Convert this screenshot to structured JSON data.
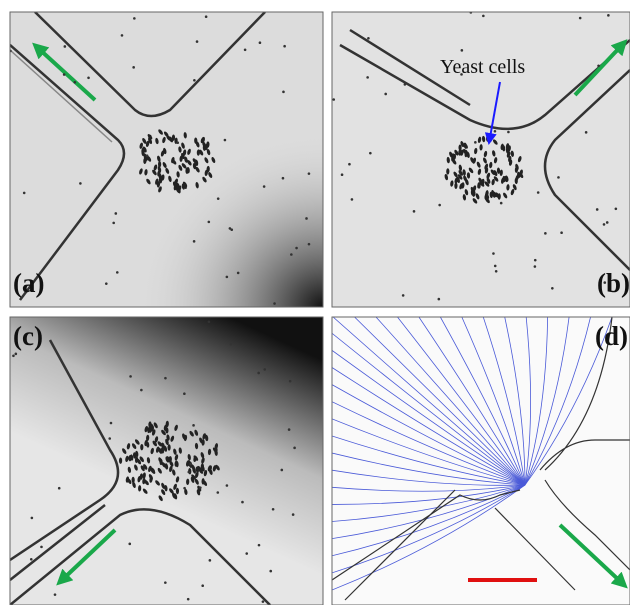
{
  "panels": [
    {
      "label": "(a)"
    },
    {
      "label": "(b)",
      "annotation": "Yeast cells"
    },
    {
      "label": "(c)"
    },
    {
      "label": "(d)"
    }
  ]
}
